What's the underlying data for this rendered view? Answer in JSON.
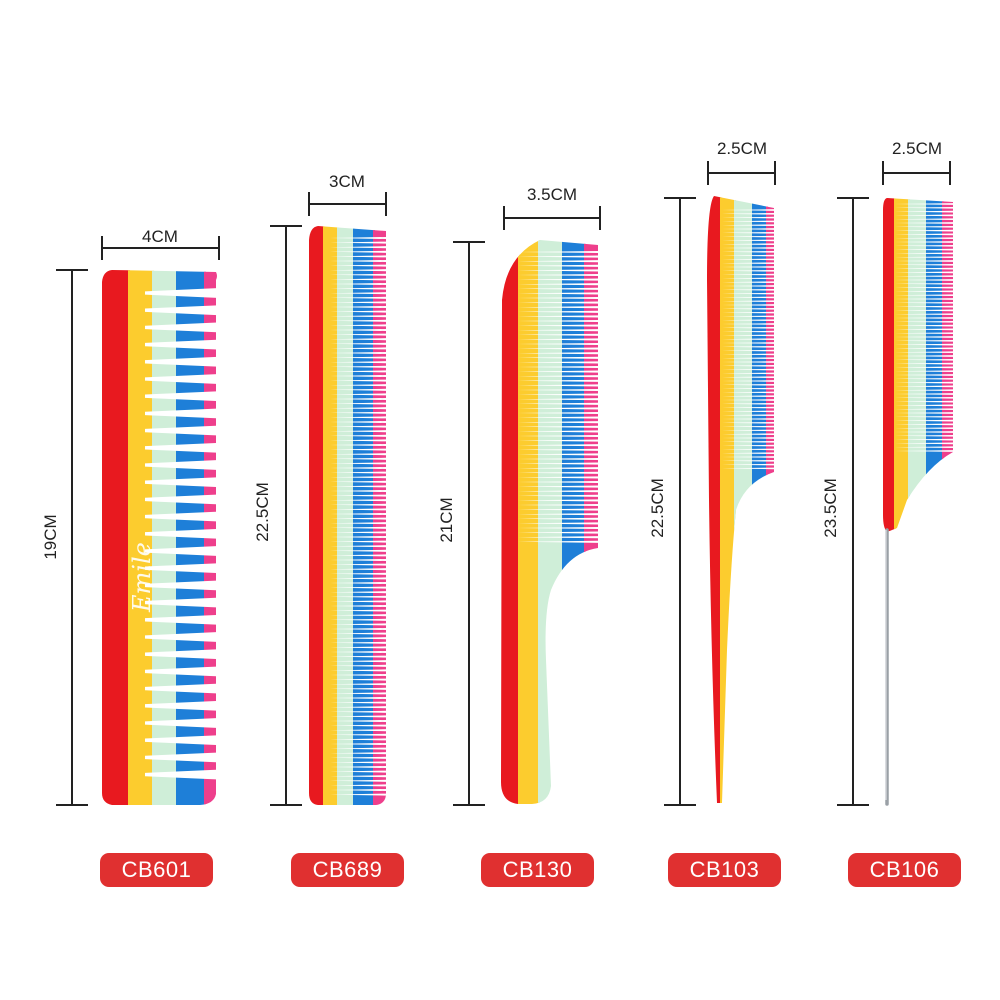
{
  "colors": {
    "red": "#e8191f",
    "yellow": "#fccc2e",
    "mint": "#cfeed8",
    "blue": "#1e7fd8",
    "pink": "#ee3f8c",
    "badge": "#e03030",
    "text": "#222222"
  },
  "combs": [
    {
      "model": "CB601",
      "width_label": "4CM",
      "length_label": "19CM"
    },
    {
      "model": "CB689",
      "width_label": "3CM",
      "length_label": "22.5CM"
    },
    {
      "model": "CB130",
      "width_label": "3.5CM",
      "length_label": "21CM"
    },
    {
      "model": "CB103",
      "width_label": "2.5CM",
      "length_label": "22.5CM"
    },
    {
      "model": "CB106",
      "width_label": "2.5CM",
      "length_label": "23.5CM"
    }
  ]
}
